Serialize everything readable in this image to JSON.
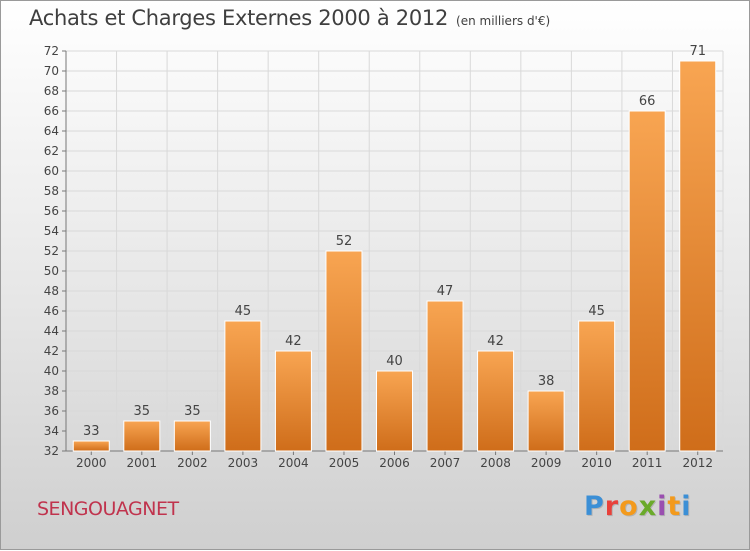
{
  "title": "Achats et Charges Externes 2000 à 2012",
  "unit": "(en milliers d'€)",
  "city": "SENGOUAGNET",
  "brand": "Proxiti",
  "brand_colors": [
    "#3b8fd6",
    "#e8413a",
    "#f39a1c",
    "#6aaa2a",
    "#9a4fb0",
    "#f39a1c",
    "#3b8fd6"
  ],
  "colors": {
    "bar_light": "#f8a552",
    "bar_dark": "#cf6d1a",
    "city": "#c0334d",
    "text": "#3f3f3f"
  },
  "chart_data": {
    "type": "bar",
    "title": "Achats et Charges Externes 2000 à 2012",
    "categories": [
      "2000",
      "2001",
      "2002",
      "2003",
      "2004",
      "2005",
      "2006",
      "2007",
      "2008",
      "2009",
      "2010",
      "2011",
      "2012"
    ],
    "values": [
      33,
      35,
      35,
      45,
      42,
      52,
      40,
      47,
      42,
      38,
      45,
      66,
      71
    ],
    "ylim": [
      32,
      72
    ],
    "yticks": [
      32,
      34,
      36,
      38,
      40,
      42,
      44,
      46,
      48,
      50,
      52,
      54,
      56,
      58,
      60,
      62,
      64,
      66,
      68,
      70,
      72
    ],
    "xlabel": "",
    "ylabel": "",
    "grid": true,
    "data_labels": true
  }
}
